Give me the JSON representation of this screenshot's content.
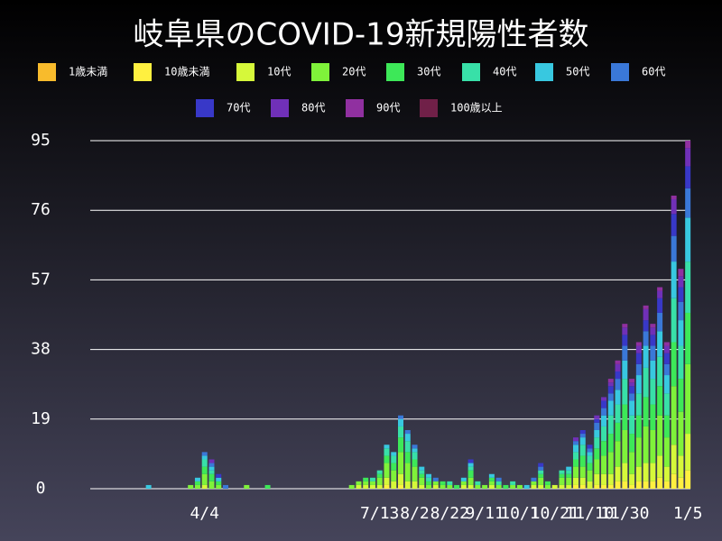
{
  "chart_data": {
    "type": "stacked_bar",
    "title": "岐阜県のCOVID-19新規陽性者数",
    "categories": [
      null,
      null,
      null,
      null,
      null,
      null,
      null,
      null,
      null,
      "4/4",
      null,
      null,
      null,
      null,
      null,
      null,
      null,
      null,
      null,
      null,
      null,
      null,
      null,
      null,
      null,
      null,
      null,
      null,
      null,
      null,
      null,
      null,
      null,
      null,
      "7/13",
      null,
      null,
      null,
      null,
      "8/2",
      null,
      null,
      null,
      null,
      "8/22",
      null,
      null,
      null,
      null,
      "9/11",
      null,
      null,
      null,
      null,
      "10/1",
      null,
      null,
      null,
      null,
      "10/21",
      null,
      null,
      null,
      null,
      "11/10",
      null,
      null,
      null,
      null,
      "11/30",
      null,
      null,
      null,
      null,
      null,
      null,
      null,
      null,
      "1/5"
    ],
    "series": [
      {
        "name": "1歳未満",
        "color": "#f8bb2c",
        "values": [
          0,
          0,
          0,
          0,
          0,
          0,
          0,
          0,
          0,
          0,
          0,
          0,
          0,
          0,
          0,
          0,
          0,
          0,
          0,
          0,
          0,
          0,
          0,
          0,
          0,
          0,
          0,
          0,
          0,
          0,
          0,
          0,
          0,
          0,
          0,
          0,
          0,
          0,
          0,
          0,
          0,
          0,
          0,
          0,
          0,
          0,
          0,
          0,
          0,
          0,
          0,
          0,
          0,
          0,
          0,
          0,
          0,
          0,
          0,
          0,
          0,
          0,
          0,
          0,
          0,
          0,
          0,
          0,
          0,
          0,
          0,
          0,
          0,
          0,
          0,
          0,
          0,
          0,
          0
        ]
      },
      {
        "name": "10歳未満",
        "color": "#fff040",
        "values": [
          0,
          0,
          0,
          0,
          0,
          0,
          0,
          0,
          0,
          0,
          0,
          0,
          0,
          0,
          0,
          0,
          0,
          0,
          0,
          0,
          0,
          0,
          0,
          0,
          0,
          0,
          0,
          0,
          0,
          0,
          0,
          0,
          0,
          0,
          0,
          1,
          0,
          1,
          0,
          0,
          0,
          0,
          0,
          0,
          0,
          0,
          0,
          0,
          0,
          0,
          0,
          0,
          0,
          0,
          0,
          0,
          0,
          0,
          0,
          0,
          0,
          0,
          1,
          1,
          0,
          1,
          1,
          1,
          2,
          2,
          1,
          2,
          2,
          2,
          3,
          2,
          4,
          3,
          5
        ]
      },
      {
        "name": "10代",
        "color": "#d6f83a",
        "values": [
          0,
          0,
          0,
          0,
          0,
          0,
          0,
          0,
          0,
          1,
          0,
          0,
          0,
          0,
          0,
          0,
          0,
          0,
          0,
          0,
          0,
          0,
          0,
          0,
          0,
          0,
          0,
          0,
          0,
          0,
          0,
          1,
          1,
          1,
          1,
          2,
          2,
          3,
          2,
          2,
          1,
          0,
          1,
          0,
          0,
          0,
          1,
          1,
          0,
          0,
          1,
          0,
          0,
          0,
          0,
          0,
          1,
          1,
          0,
          1,
          1,
          1,
          2,
          2,
          2,
          3,
          3,
          3,
          4,
          5,
          3,
          4,
          5,
          5,
          6,
          4,
          8,
          6,
          10
        ]
      },
      {
        "name": "20代",
        "color": "#7ff23a",
        "values": [
          0,
          0,
          0,
          0,
          0,
          0,
          0,
          1,
          1,
          3,
          2,
          1,
          0,
          0,
          0,
          1,
          0,
          0,
          0,
          0,
          0,
          0,
          0,
          0,
          0,
          0,
          0,
          0,
          0,
          0,
          1,
          1,
          1,
          1,
          2,
          4,
          3,
          6,
          5,
          4,
          2,
          1,
          1,
          1,
          1,
          0,
          1,
          2,
          1,
          1,
          1,
          1,
          0,
          1,
          1,
          0,
          1,
          2,
          1,
          0,
          2,
          2,
          3,
          3,
          3,
          4,
          5,
          6,
          7,
          9,
          6,
          8,
          10,
          9,
          11,
          8,
          16,
          12,
          19
        ]
      },
      {
        "name": "30代",
        "color": "#3de858",
        "values": [
          0,
          0,
          0,
          0,
          0,
          0,
          0,
          0,
          1,
          2,
          2,
          1,
          0,
          0,
          0,
          0,
          0,
          0,
          1,
          0,
          0,
          0,
          0,
          0,
          0,
          0,
          0,
          0,
          0,
          0,
          0,
          0,
          1,
          0,
          1,
          2,
          2,
          4,
          3,
          2,
          1,
          1,
          0,
          1,
          0,
          1,
          0,
          2,
          0,
          0,
          1,
          0,
          1,
          0,
          0,
          0,
          0,
          1,
          1,
          0,
          1,
          1,
          2,
          3,
          2,
          3,
          4,
          5,
          5,
          7,
          5,
          6,
          8,
          7,
          8,
          6,
          12,
          9,
          14
        ]
      },
      {
        "name": "40代",
        "color": "#38e0a8",
        "values": [
          0,
          0,
          0,
          0,
          0,
          0,
          0,
          0,
          0,
          2,
          1,
          0,
          0,
          0,
          0,
          0,
          0,
          0,
          0,
          0,
          0,
          0,
          0,
          0,
          0,
          0,
          0,
          0,
          0,
          0,
          0,
          0,
          0,
          1,
          1,
          2,
          2,
          3,
          3,
          2,
          1,
          1,
          0,
          0,
          1,
          0,
          0,
          1,
          1,
          0,
          0,
          1,
          0,
          1,
          0,
          0,
          0,
          1,
          0,
          0,
          1,
          1,
          2,
          3,
          2,
          3,
          4,
          5,
          5,
          7,
          5,
          6,
          8,
          7,
          8,
          6,
          12,
          9,
          14
        ]
      },
      {
        "name": "50代",
        "color": "#38c8e0",
        "values": [
          0,
          1,
          0,
          0,
          0,
          0,
          0,
          0,
          1,
          1,
          1,
          1,
          0,
          0,
          0,
          0,
          0,
          0,
          0,
          0,
          0,
          0,
          0,
          0,
          0,
          0,
          0,
          0,
          0,
          0,
          0,
          0,
          0,
          0,
          0,
          1,
          1,
          2,
          2,
          1,
          1,
          1,
          0,
          0,
          0,
          0,
          1,
          1,
          0,
          0,
          1,
          0,
          0,
          0,
          0,
          1,
          0,
          0,
          0,
          0,
          0,
          1,
          2,
          2,
          1,
          2,
          3,
          4,
          4,
          5,
          4,
          5,
          6,
          5,
          7,
          5,
          10,
          7,
          12
        ]
      },
      {
        "name": "60代",
        "color": "#3a78d8",
        "values": [
          0,
          0,
          0,
          0,
          0,
          0,
          0,
          0,
          0,
          1,
          1,
          0,
          1,
          0,
          0,
          0,
          0,
          0,
          0,
          0,
          0,
          0,
          0,
          0,
          0,
          0,
          0,
          0,
          0,
          0,
          0,
          0,
          0,
          0,
          0,
          0,
          0,
          1,
          1,
          1,
          0,
          0,
          1,
          0,
          0,
          0,
          0,
          0,
          0,
          0,
          0,
          1,
          0,
          0,
          0,
          0,
          1,
          1,
          0,
          0,
          0,
          0,
          1,
          1,
          1,
          2,
          2,
          2,
          3,
          4,
          2,
          3,
          4,
          4,
          5,
          3,
          7,
          5,
          8
        ]
      },
      {
        "name": "70代",
        "color": "#3838c8",
        "values": [
          0,
          0,
          0,
          0,
          0,
          0,
          0,
          0,
          0,
          0,
          0,
          1,
          0,
          0,
          0,
          0,
          0,
          0,
          0,
          0,
          0,
          0,
          0,
          0,
          0,
          0,
          0,
          0,
          0,
          0,
          0,
          0,
          0,
          0,
          0,
          0,
          0,
          0,
          0,
          0,
          0,
          0,
          0,
          0,
          0,
          0,
          0,
          1,
          0,
          0,
          0,
          0,
          0,
          0,
          0,
          0,
          0,
          1,
          0,
          0,
          0,
          0,
          0,
          1,
          1,
          1,
          2,
          2,
          2,
          3,
          2,
          3,
          3,
          3,
          4,
          3,
          6,
          4,
          6
        ]
      },
      {
        "name": "80代",
        "color": "#7030b8",
        "values": [
          0,
          0,
          0,
          0,
          0,
          0,
          0,
          0,
          0,
          0,
          1,
          0,
          0,
          0,
          0,
          0,
          0,
          0,
          0,
          0,
          0,
          0,
          0,
          0,
          0,
          0,
          0,
          0,
          0,
          0,
          0,
          0,
          0,
          0,
          0,
          0,
          0,
          0,
          0,
          0,
          0,
          0,
          0,
          0,
          0,
          0,
          0,
          0,
          0,
          0,
          0,
          0,
          0,
          0,
          0,
          0,
          0,
          0,
          0,
          0,
          0,
          0,
          1,
          0,
          0,
          1,
          1,
          1,
          2,
          2,
          1,
          2,
          3,
          2,
          2,
          2,
          4,
          3,
          5
        ]
      },
      {
        "name": "90代",
        "color": "#9030a0",
        "values": [
          0,
          0,
          0,
          0,
          0,
          0,
          0,
          0,
          0,
          0,
          0,
          0,
          0,
          0,
          0,
          0,
          0,
          0,
          0,
          0,
          0,
          0,
          0,
          0,
          0,
          0,
          0,
          0,
          0,
          0,
          0,
          0,
          0,
          0,
          0,
          0,
          0,
          0,
          0,
          0,
          0,
          0,
          0,
          0,
          0,
          0,
          0,
          0,
          0,
          0,
          0,
          0,
          0,
          0,
          0,
          0,
          0,
          0,
          0,
          0,
          0,
          0,
          0,
          0,
          0,
          0,
          0,
          1,
          1,
          1,
          1,
          1,
          1,
          1,
          1,
          1,
          1,
          2,
          2
        ]
      },
      {
        "name": "100歳以上",
        "color": "#702048",
        "values": [
          0,
          0,
          0,
          0,
          0,
          0,
          0,
          0,
          0,
          0,
          0,
          0,
          0,
          0,
          0,
          0,
          0,
          0,
          0,
          0,
          0,
          0,
          0,
          0,
          0,
          0,
          0,
          0,
          0,
          0,
          0,
          0,
          0,
          0,
          0,
          0,
          0,
          0,
          0,
          0,
          0,
          0,
          0,
          0,
          0,
          0,
          0,
          0,
          0,
          0,
          0,
          0,
          0,
          0,
          0,
          0,
          0,
          0,
          0,
          0,
          0,
          0,
          0,
          0,
          0,
          0,
          0,
          0,
          0,
          0,
          0,
          0,
          0,
          0,
          0,
          0,
          0,
          0,
          0
        ]
      }
    ],
    "ylim": [
      0,
      95
    ],
    "yticks": [
      0,
      19,
      38,
      57,
      76,
      95
    ],
    "grid": true
  }
}
